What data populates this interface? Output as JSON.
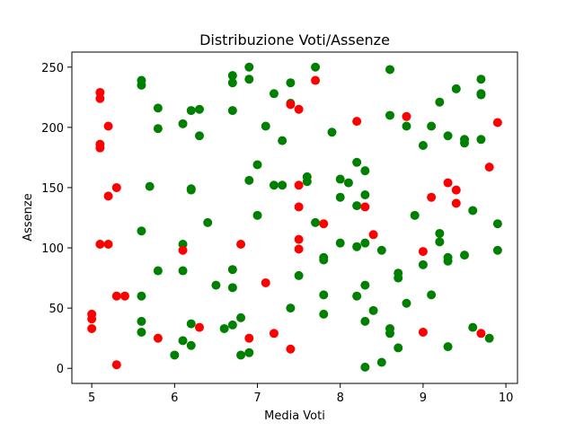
{
  "chart_data": {
    "type": "scatter",
    "title": "Distribuzione Voti/Assenze",
    "xlabel": "Media Voti",
    "ylabel": "Assenze",
    "xlim": [
      4.76,
      10.14
    ],
    "ylim": [
      -12.5,
      262.5
    ],
    "xticks": [
      5,
      6,
      7,
      8,
      9,
      10
    ],
    "yticks": [
      0,
      50,
      100,
      150,
      200,
      250
    ],
    "grid": false,
    "colors": {
      "green": "#008000",
      "red": "#ff0000"
    },
    "points": [
      {
        "x": 5.0,
        "y": 45,
        "c": "red"
      },
      {
        "x": 5.0,
        "y": 41,
        "c": "red"
      },
      {
        "x": 5.0,
        "y": 33,
        "c": "red"
      },
      {
        "x": 5.1,
        "y": 229,
        "c": "red"
      },
      {
        "x": 5.1,
        "y": 224,
        "c": "red"
      },
      {
        "x": 5.1,
        "y": 186,
        "c": "red"
      },
      {
        "x": 5.1,
        "y": 183,
        "c": "red"
      },
      {
        "x": 5.1,
        "y": 103,
        "c": "red"
      },
      {
        "x": 5.2,
        "y": 201,
        "c": "red"
      },
      {
        "x": 5.2,
        "y": 143,
        "c": "red"
      },
      {
        "x": 5.2,
        "y": 103,
        "c": "red"
      },
      {
        "x": 5.3,
        "y": 150,
        "c": "red"
      },
      {
        "x": 5.3,
        "y": 60,
        "c": "red"
      },
      {
        "x": 5.3,
        "y": 3,
        "c": "red"
      },
      {
        "x": 5.4,
        "y": 60,
        "c": "red"
      },
      {
        "x": 5.6,
        "y": 239,
        "c": "green"
      },
      {
        "x": 5.6,
        "y": 235,
        "c": "green"
      },
      {
        "x": 5.6,
        "y": 114,
        "c": "green"
      },
      {
        "x": 5.6,
        "y": 60,
        "c": "green"
      },
      {
        "x": 5.6,
        "y": 39,
        "c": "green"
      },
      {
        "x": 5.6,
        "y": 30,
        "c": "green"
      },
      {
        "x": 5.7,
        "y": 151,
        "c": "green"
      },
      {
        "x": 5.8,
        "y": 216,
        "c": "green"
      },
      {
        "x": 5.8,
        "y": 199,
        "c": "green"
      },
      {
        "x": 5.8,
        "y": 81,
        "c": "green"
      },
      {
        "x": 5.8,
        "y": 25,
        "c": "red"
      },
      {
        "x": 6.0,
        "y": 11,
        "c": "green"
      },
      {
        "x": 6.1,
        "y": 203,
        "c": "green"
      },
      {
        "x": 6.1,
        "y": 103,
        "c": "green"
      },
      {
        "x": 6.1,
        "y": 98,
        "c": "red"
      },
      {
        "x": 6.1,
        "y": 81,
        "c": "green"
      },
      {
        "x": 6.1,
        "y": 23,
        "c": "green"
      },
      {
        "x": 6.2,
        "y": 214,
        "c": "green"
      },
      {
        "x": 6.2,
        "y": 149,
        "c": "green"
      },
      {
        "x": 6.2,
        "y": 148,
        "c": "green"
      },
      {
        "x": 6.2,
        "y": 37,
        "c": "green"
      },
      {
        "x": 6.2,
        "y": 19,
        "c": "green"
      },
      {
        "x": 6.3,
        "y": 215,
        "c": "green"
      },
      {
        "x": 6.3,
        "y": 193,
        "c": "green"
      },
      {
        "x": 6.3,
        "y": 34,
        "c": "red"
      },
      {
        "x": 6.4,
        "y": 121,
        "c": "green"
      },
      {
        "x": 6.5,
        "y": 69,
        "c": "green"
      },
      {
        "x": 6.6,
        "y": 33,
        "c": "green"
      },
      {
        "x": 6.7,
        "y": 243,
        "c": "green"
      },
      {
        "x": 6.7,
        "y": 237,
        "c": "green"
      },
      {
        "x": 6.7,
        "y": 214,
        "c": "green"
      },
      {
        "x": 6.7,
        "y": 82,
        "c": "green"
      },
      {
        "x": 6.7,
        "y": 67,
        "c": "green"
      },
      {
        "x": 6.7,
        "y": 36,
        "c": "green"
      },
      {
        "x": 6.8,
        "y": 103,
        "c": "red"
      },
      {
        "x": 6.8,
        "y": 42,
        "c": "green"
      },
      {
        "x": 6.8,
        "y": 11,
        "c": "green"
      },
      {
        "x": 6.9,
        "y": 250,
        "c": "green"
      },
      {
        "x": 6.9,
        "y": 240,
        "c": "green"
      },
      {
        "x": 6.9,
        "y": 156,
        "c": "green"
      },
      {
        "x": 6.9,
        "y": 25,
        "c": "red"
      },
      {
        "x": 6.9,
        "y": 13,
        "c": "green"
      },
      {
        "x": 7.0,
        "y": 169,
        "c": "green"
      },
      {
        "x": 7.0,
        "y": 127,
        "c": "green"
      },
      {
        "x": 7.1,
        "y": 201,
        "c": "green"
      },
      {
        "x": 7.1,
        "y": 71,
        "c": "red"
      },
      {
        "x": 7.2,
        "y": 228,
        "c": "green"
      },
      {
        "x": 7.2,
        "y": 152,
        "c": "green"
      },
      {
        "x": 7.2,
        "y": 29,
        "c": "red"
      },
      {
        "x": 7.3,
        "y": 189,
        "c": "green"
      },
      {
        "x": 7.3,
        "y": 152,
        "c": "green"
      },
      {
        "x": 7.4,
        "y": 237,
        "c": "green"
      },
      {
        "x": 7.4,
        "y": 220,
        "c": "green"
      },
      {
        "x": 7.4,
        "y": 219,
        "c": "red"
      },
      {
        "x": 7.4,
        "y": 50,
        "c": "green"
      },
      {
        "x": 7.4,
        "y": 16,
        "c": "red"
      },
      {
        "x": 7.5,
        "y": 215,
        "c": "red"
      },
      {
        "x": 7.5,
        "y": 152,
        "c": "red"
      },
      {
        "x": 7.5,
        "y": 134,
        "c": "red"
      },
      {
        "x": 7.5,
        "y": 107,
        "c": "red"
      },
      {
        "x": 7.5,
        "y": 99,
        "c": "red"
      },
      {
        "x": 7.5,
        "y": 77,
        "c": "green"
      },
      {
        "x": 7.6,
        "y": 159,
        "c": "green"
      },
      {
        "x": 7.6,
        "y": 155,
        "c": "green"
      },
      {
        "x": 7.7,
        "y": 250,
        "c": "green"
      },
      {
        "x": 7.7,
        "y": 239,
        "c": "red"
      },
      {
        "x": 7.7,
        "y": 121,
        "c": "green"
      },
      {
        "x": 7.8,
        "y": 120,
        "c": "red"
      },
      {
        "x": 7.8,
        "y": 92,
        "c": "green"
      },
      {
        "x": 7.8,
        "y": 90,
        "c": "green"
      },
      {
        "x": 7.8,
        "y": 61,
        "c": "green"
      },
      {
        "x": 7.8,
        "y": 45,
        "c": "green"
      },
      {
        "x": 7.9,
        "y": 196,
        "c": "green"
      },
      {
        "x": 8.0,
        "y": 157,
        "c": "green"
      },
      {
        "x": 8.0,
        "y": 142,
        "c": "green"
      },
      {
        "x": 8.0,
        "y": 104,
        "c": "green"
      },
      {
        "x": 8.1,
        "y": 154,
        "c": "green"
      },
      {
        "x": 8.2,
        "y": 205,
        "c": "red"
      },
      {
        "x": 8.2,
        "y": 171,
        "c": "green"
      },
      {
        "x": 8.2,
        "y": 135,
        "c": "green"
      },
      {
        "x": 8.2,
        "y": 101,
        "c": "green"
      },
      {
        "x": 8.2,
        "y": 60,
        "c": "green"
      },
      {
        "x": 8.3,
        "y": 164,
        "c": "green"
      },
      {
        "x": 8.3,
        "y": 144,
        "c": "green"
      },
      {
        "x": 8.3,
        "y": 134,
        "c": "red"
      },
      {
        "x": 8.3,
        "y": 104,
        "c": "green"
      },
      {
        "x": 8.3,
        "y": 69,
        "c": "green"
      },
      {
        "x": 8.3,
        "y": 39,
        "c": "green"
      },
      {
        "x": 8.3,
        "y": 1,
        "c": "green"
      },
      {
        "x": 8.4,
        "y": 111,
        "c": "red"
      },
      {
        "x": 8.4,
        "y": 48,
        "c": "green"
      },
      {
        "x": 8.5,
        "y": 98,
        "c": "green"
      },
      {
        "x": 8.5,
        "y": 5,
        "c": "green"
      },
      {
        "x": 8.6,
        "y": 248,
        "c": "green"
      },
      {
        "x": 8.6,
        "y": 210,
        "c": "green"
      },
      {
        "x": 8.6,
        "y": 33,
        "c": "green"
      },
      {
        "x": 8.6,
        "y": 29,
        "c": "green"
      },
      {
        "x": 8.7,
        "y": 79,
        "c": "green"
      },
      {
        "x": 8.7,
        "y": 75,
        "c": "green"
      },
      {
        "x": 8.7,
        "y": 17,
        "c": "green"
      },
      {
        "x": 8.8,
        "y": 209,
        "c": "red"
      },
      {
        "x": 8.8,
        "y": 201,
        "c": "green"
      },
      {
        "x": 8.8,
        "y": 54,
        "c": "green"
      },
      {
        "x": 8.9,
        "y": 127,
        "c": "green"
      },
      {
        "x": 9.0,
        "y": 185,
        "c": "green"
      },
      {
        "x": 9.0,
        "y": 97,
        "c": "red"
      },
      {
        "x": 9.0,
        "y": 86,
        "c": "green"
      },
      {
        "x": 9.0,
        "y": 30,
        "c": "red"
      },
      {
        "x": 9.1,
        "y": 201,
        "c": "green"
      },
      {
        "x": 9.1,
        "y": 142,
        "c": "red"
      },
      {
        "x": 9.1,
        "y": 61,
        "c": "green"
      },
      {
        "x": 9.2,
        "y": 221,
        "c": "green"
      },
      {
        "x": 9.2,
        "y": 112,
        "c": "green"
      },
      {
        "x": 9.2,
        "y": 105,
        "c": "green"
      },
      {
        "x": 9.3,
        "y": 193,
        "c": "green"
      },
      {
        "x": 9.3,
        "y": 154,
        "c": "red"
      },
      {
        "x": 9.3,
        "y": 92,
        "c": "green"
      },
      {
        "x": 9.3,
        "y": 89,
        "c": "green"
      },
      {
        "x": 9.3,
        "y": 18,
        "c": "green"
      },
      {
        "x": 9.4,
        "y": 232,
        "c": "green"
      },
      {
        "x": 9.4,
        "y": 148,
        "c": "red"
      },
      {
        "x": 9.4,
        "y": 137,
        "c": "red"
      },
      {
        "x": 9.5,
        "y": 190,
        "c": "green"
      },
      {
        "x": 9.5,
        "y": 187,
        "c": "green"
      },
      {
        "x": 9.5,
        "y": 94,
        "c": "green"
      },
      {
        "x": 9.6,
        "y": 131,
        "c": "green"
      },
      {
        "x": 9.6,
        "y": 34,
        "c": "green"
      },
      {
        "x": 9.7,
        "y": 240,
        "c": "green"
      },
      {
        "x": 9.7,
        "y": 228,
        "c": "green"
      },
      {
        "x": 9.7,
        "y": 227,
        "c": "green"
      },
      {
        "x": 9.7,
        "y": 190,
        "c": "green"
      },
      {
        "x": 9.7,
        "y": 29,
        "c": "red"
      },
      {
        "x": 9.8,
        "y": 167,
        "c": "red"
      },
      {
        "x": 9.8,
        "y": 25,
        "c": "green"
      },
      {
        "x": 9.9,
        "y": 204,
        "c": "red"
      },
      {
        "x": 9.9,
        "y": 120,
        "c": "green"
      },
      {
        "x": 9.9,
        "y": 98,
        "c": "green"
      }
    ]
  }
}
